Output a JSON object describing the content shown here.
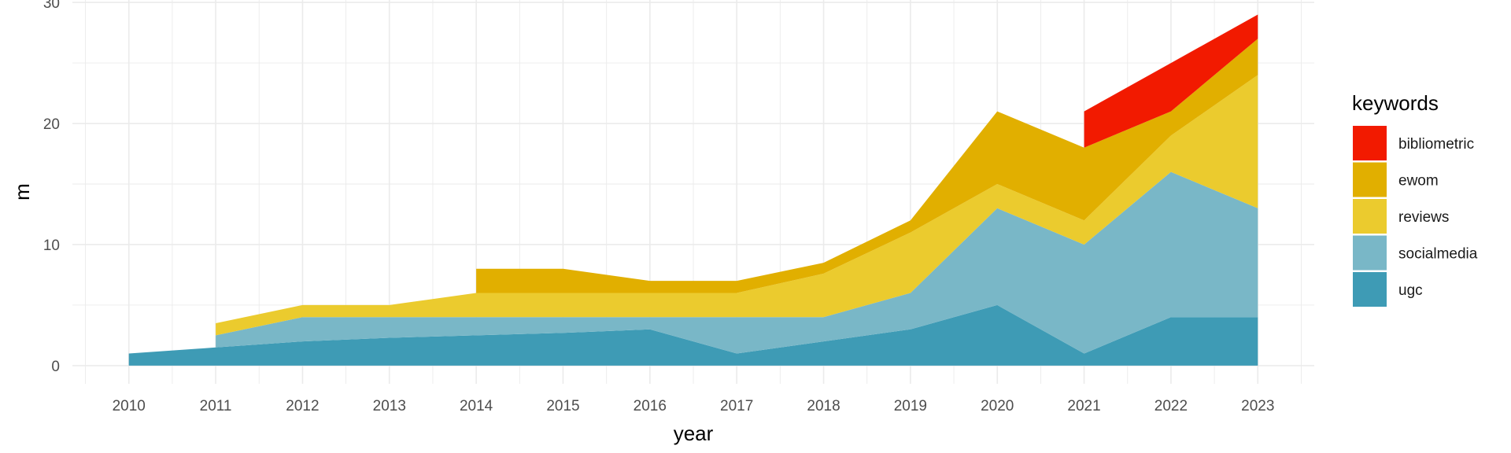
{
  "chart_data": {
    "type": "area",
    "stacked": true,
    "xlabel": "year",
    "ylabel": "m",
    "x": [
      2010,
      2011,
      2012,
      2013,
      2014,
      2015,
      2016,
      2017,
      2018,
      2019,
      2020,
      2021,
      2022,
      2023
    ],
    "x_ticks": [
      "2010",
      "2011",
      "2012",
      "2013",
      "2014",
      "2015",
      "2016",
      "2017",
      "2018",
      "2019",
      "2020",
      "2021",
      "2022",
      "2023"
    ],
    "y_ticks": [
      "0",
      "10",
      "20",
      "30"
    ],
    "ylim": [
      0,
      30
    ],
    "grid": true,
    "legend": {
      "title": "keywords",
      "position": "right",
      "items": [
        "bibliometric",
        "ewom",
        "reviews",
        "socialmedia",
        "ugc"
      ]
    },
    "series": [
      {
        "name": "ugc",
        "color": "#3E9BB5",
        "values": [
          1,
          1.5,
          2,
          2.3,
          2.5,
          2.7,
          3,
          1,
          2,
          3,
          5,
          1,
          4,
          4
        ]
      },
      {
        "name": "socialmedia",
        "color": "#79B7C7",
        "values": [
          null,
          1,
          2,
          1.7,
          1.5,
          1.3,
          1,
          3,
          2,
          3,
          8,
          9,
          12,
          9
        ]
      },
      {
        "name": "reviews",
        "color": "#EBCB2E",
        "values": [
          null,
          1,
          1,
          1,
          2,
          2,
          2,
          2,
          3.6,
          5,
          2,
          2,
          3,
          11
        ]
      },
      {
        "name": "ewom",
        "color": "#E1AF00",
        "values": [
          null,
          null,
          null,
          null,
          2,
          2,
          1,
          1,
          0.9,
          1,
          6,
          6,
          2,
          3
        ]
      },
      {
        "name": "bibliometric",
        "color": "#F21A00",
        "values": [
          null,
          null,
          null,
          null,
          null,
          null,
          null,
          null,
          null,
          null,
          null,
          3,
          4,
          2
        ]
      }
    ]
  }
}
